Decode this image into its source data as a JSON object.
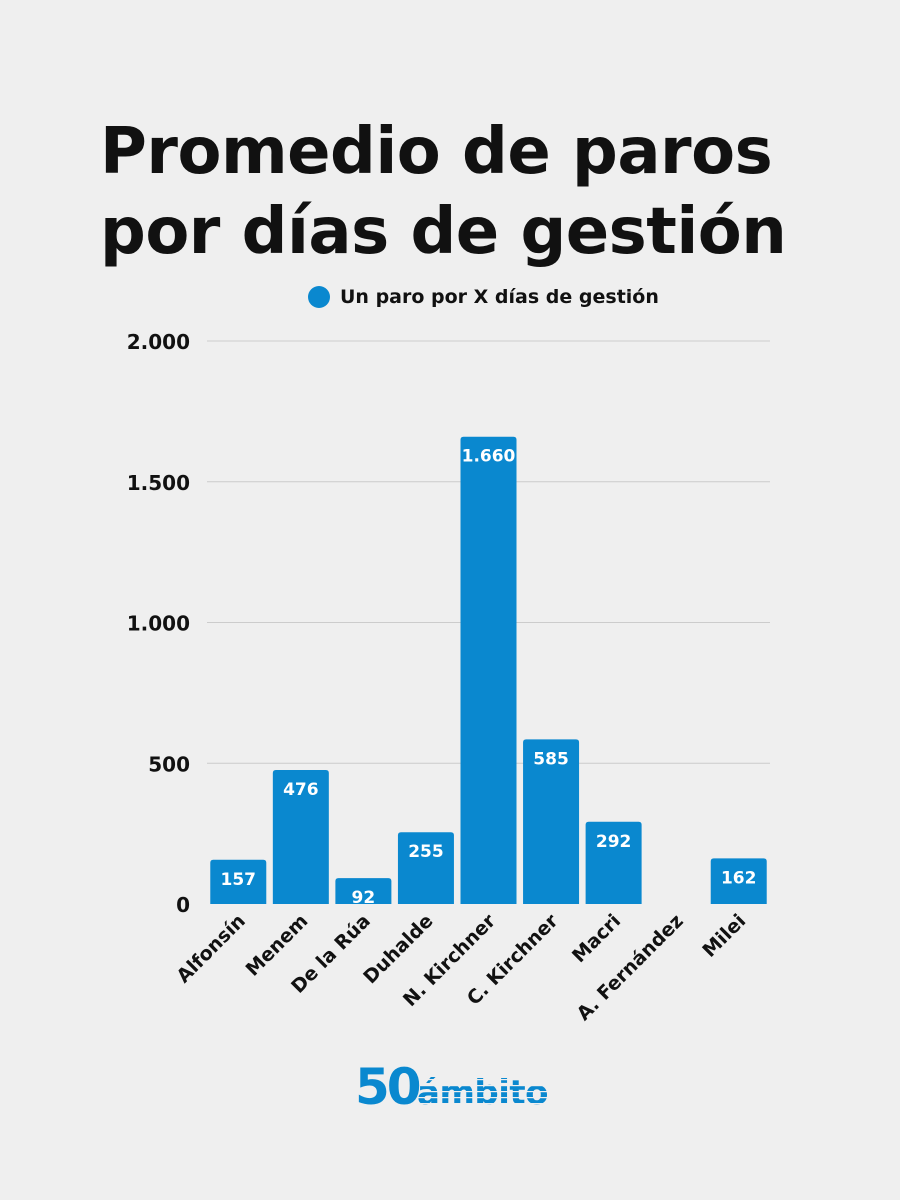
{
  "chart_data": {
    "type": "bar",
    "title": "Promedio de paros por días de gestión",
    "title_lines": [
      "Promedio de paros",
      "por días de gestión"
    ],
    "xlabel": "",
    "ylabel": "",
    "categories": [
      "Alfonsín",
      "Menem",
      "De la Rúa",
      "Duhalde",
      "N. Kirchner",
      "C. Kirchner",
      "Macri",
      "A. Fernández",
      "Milei"
    ],
    "series": [
      {
        "name": "Un paro por X días de gestión",
        "values": [
          157,
          476,
          92,
          255,
          1660,
          585,
          292,
          null,
          162
        ],
        "value_labels": [
          "157",
          "476",
          "92",
          "255",
          "1.660",
          "585",
          "292",
          "",
          "162"
        ],
        "color": "#0a88cf"
      }
    ],
    "ylim": [
      0,
      2000
    ],
    "yticks": [
      0,
      500,
      1000,
      1500,
      2000
    ],
    "ytick_labels": [
      "0",
      "500",
      "1.000",
      "1.500",
      "2.000"
    ],
    "grid": true,
    "legend_position": "top"
  },
  "colors": {
    "background": "#efefef",
    "bar": "#0a88cf",
    "gridline": "#cccccc",
    "text": "#111111",
    "bar_label": "#ffffff",
    "logo": "#0a88cf"
  },
  "logo": {
    "number": "50",
    "name": "ámbito"
  }
}
